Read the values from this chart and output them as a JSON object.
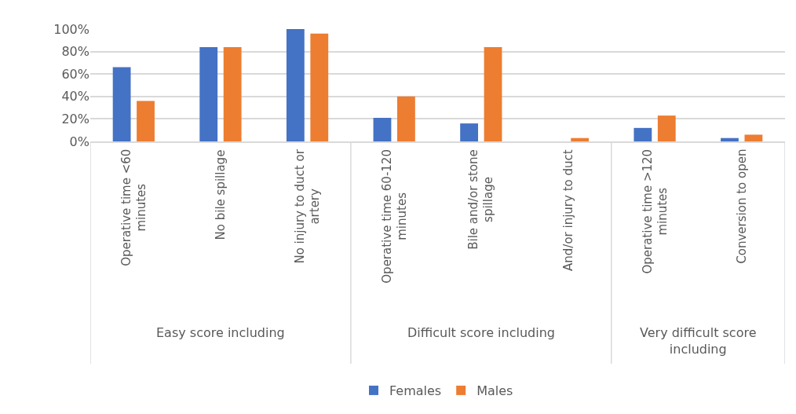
{
  "chart_data": {
    "type": "bar",
    "categories": [
      "Operative time <60 minutes",
      "No bile spillage",
      "No injury to duct or artery",
      "Operative time 60-120 minutes",
      "Bile and/or stone spillage",
      "And/or injury to duct",
      "Operative time >120 minutes",
      "Conversion to open"
    ],
    "annotations": [
      "Easy score including",
      "Difficult score including",
      "Very difficult score including"
    ],
    "series": [
      {
        "name": "Females",
        "color": "#4472c4",
        "values": [
          66,
          84,
          100,
          21,
          16,
          0,
          12,
          3
        ]
      },
      {
        "name": "Males",
        "color": "#ed7d31",
        "values": [
          36,
          84,
          96,
          40,
          84,
          3,
          23,
          6
        ]
      }
    ],
    "ylim": [
      0,
      100
    ],
    "yticks": [
      {
        "value": 0,
        "label": "0%"
      },
      {
        "value": 20,
        "label": "20%"
      },
      {
        "value": 40,
        "label": "40%"
      },
      {
        "value": 60,
        "label": "60%"
      },
      {
        "value": 80,
        "label": "80%"
      },
      {
        "value": 100,
        "label": "100%"
      }
    ],
    "grid": "y",
    "legend": "bottom"
  }
}
